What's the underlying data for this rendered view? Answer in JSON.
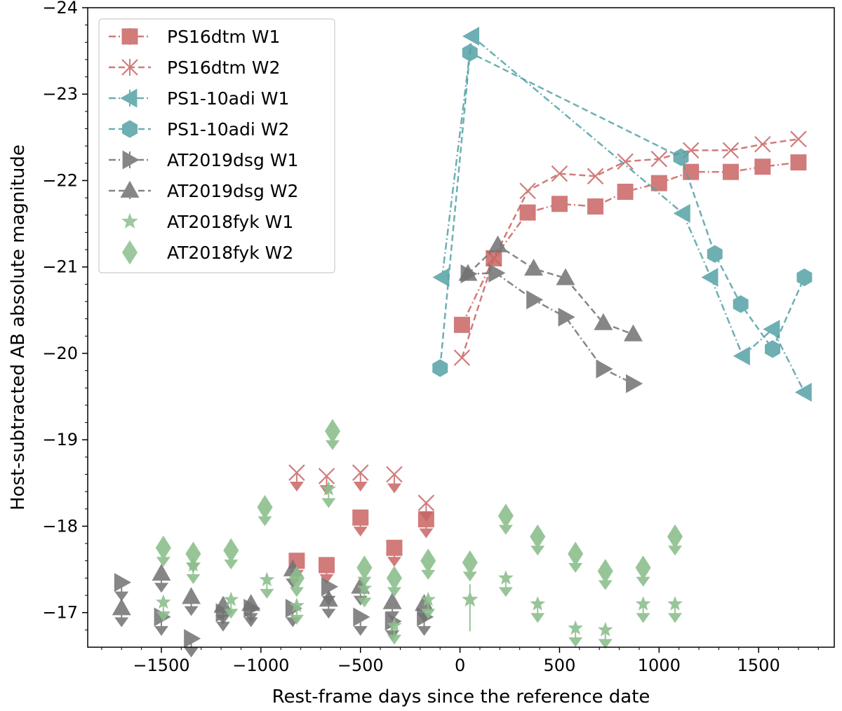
{
  "chart_data": {
    "type": "scatter",
    "xlabel": "Rest-frame days since the reference date",
    "ylabel": "Host-subtracted AB absolute magnitude",
    "xlim": [
      -1870,
      1880
    ],
    "ylim": [
      -16.6,
      -24.0
    ],
    "y_inverted": true,
    "xticks": [
      -1500,
      -1000,
      -500,
      0,
      500,
      1000,
      1500
    ],
    "xtick_labels": [
      "−1500",
      "−1000",
      "−500",
      "0",
      "500",
      "1000",
      "1500"
    ],
    "yticks": [
      -17,
      -18,
      -19,
      -20,
      -21,
      -22,
      -23,
      -24
    ],
    "ytick_labels": [
      "−17",
      "−18",
      "−19",
      "−20",
      "−21",
      "−22",
      "−23",
      "−24"
    ],
    "grid": false,
    "legend_position": "top-left",
    "series": [
      {
        "name": "PS16dtm W1",
        "color": "#c96464",
        "marker": "square",
        "line": "dashdot",
        "x": [
          10,
          170,
          340,
          500,
          680,
          830,
          1000,
          1160,
          1360,
          1520,
          1700
        ],
        "y": [
          -20.33,
          -21.1,
          -21.63,
          -21.73,
          -21.7,
          -21.87,
          -21.97,
          -22.1,
          -22.1,
          -22.16,
          -22.21
        ],
        "upper_limits": {
          "x": [
            -820,
            -670,
            -500,
            -330,
            -170
          ],
          "y": [
            -17.6,
            -17.55,
            -18.1,
            -17.75,
            -18.08
          ]
        }
      },
      {
        "name": "PS16dtm W2",
        "color": "#c96464",
        "marker": "x",
        "line": "dashed",
        "x": [
          10,
          170,
          340,
          500,
          680,
          830,
          1000,
          1160,
          1360,
          1520,
          1700
        ],
        "y": [
          -19.95,
          -21.1,
          -21.88,
          -22.08,
          -22.05,
          -22.22,
          -22.25,
          -22.35,
          -22.35,
          -22.42,
          -22.48
        ],
        "upper_limits": {
          "x": [
            -820,
            -670,
            -500,
            -330,
            -170
          ],
          "y": [
            -18.62,
            -18.58,
            -18.62,
            -18.6,
            -18.27
          ]
        }
      },
      {
        "name": "PS1-10adi W1",
        "color": "#55a2a6",
        "marker": "triangle-left",
        "line": "dashdot",
        "x": [
          -90,
          60,
          1120,
          1260,
          1420,
          1570,
          1730
        ],
        "y": [
          -20.88,
          -23.67,
          -21.62,
          -20.88,
          -19.97,
          -20.28,
          -19.55
        ]
      },
      {
        "name": "PS1-10adi W2",
        "color": "#55a2a6",
        "marker": "hexagon",
        "line": "dashed",
        "x": [
          -100,
          50,
          1110,
          1280,
          1410,
          1570,
          1730
        ],
        "y": [
          -19.83,
          -23.48,
          -22.27,
          -21.15,
          -20.57,
          -20.05,
          -20.88
        ]
      },
      {
        "name": "AT2019dsg W1",
        "color": "#727272",
        "marker": "triangle-right",
        "line": "dashdot",
        "x": [
          40,
          180,
          370,
          530,
          720,
          870
        ],
        "y": [
          -20.92,
          -20.93,
          -20.62,
          -20.42,
          -19.82,
          -19.65
        ],
        "upper_limits": {
          "x": [
            -1700,
            -1500,
            -1350,
            -1190,
            -1050,
            -840,
            -660,
            -500,
            -340,
            -180
          ],
          "y": [
            -17.35,
            -16.95,
            -16.7,
            -17.0,
            -17.05,
            -17.05,
            -17.3,
            -16.95,
            -16.9,
            -16.95
          ]
        }
      },
      {
        "name": "AT2019dsg W2",
        "color": "#727272",
        "marker": "triangle-up",
        "line": "dashed",
        "x": [
          40,
          190,
          370,
          530,
          720,
          870
        ],
        "y": [
          -20.92,
          -21.25,
          -20.98,
          -20.87,
          -20.35,
          -20.22
        ],
        "upper_limits": {
          "x": [
            -1700,
            -1500,
            -1350,
            -1190,
            -1050,
            -840,
            -660,
            -500,
            -340,
            -180
          ],
          "y": [
            -17.05,
            -17.45,
            -17.18,
            -17.08,
            -17.1,
            -17.5,
            -17.15,
            -17.3,
            -17.12,
            -17.1
          ]
        }
      },
      {
        "name": "AT2018fyk W1",
        "color": "#8dbf8d",
        "marker": "star",
        "line": "none",
        "x": [
          50
        ],
        "y": [
          -17.15
        ],
        "upper_limits": {
          "x": [
            -1490,
            -1340,
            -1150,
            -970,
            -820,
            -660,
            -480,
            -330,
            -160,
            230,
            390,
            580,
            730,
            920,
            1080
          ],
          "y": [
            -17.12,
            -17.55,
            -17.15,
            -17.38,
            -17.08,
            -18.43,
            -17.28,
            -16.85,
            -17.15,
            -17.4,
            -17.1,
            -16.82,
            -16.8,
            -17.1,
            -17.1
          ]
        }
      },
      {
        "name": "AT2018fyk W2",
        "color": "#8dbf8d",
        "marker": "diamond",
        "line": "none",
        "x": [],
        "y": [],
        "upper_limits": {
          "x": [
            -1490,
            -1340,
            -1150,
            -980,
            -820,
            -640,
            -480,
            -330,
            -160,
            50,
            230,
            390,
            580,
            730,
            920,
            1080
          ],
          "y": [
            -17.75,
            -17.68,
            -17.72,
            -18.22,
            -17.4,
            -19.1,
            -17.52,
            -17.4,
            -17.6,
            -17.58,
            -18.12,
            -17.88,
            -17.68,
            -17.48,
            -17.52,
            -17.88
          ]
        }
      }
    ]
  }
}
